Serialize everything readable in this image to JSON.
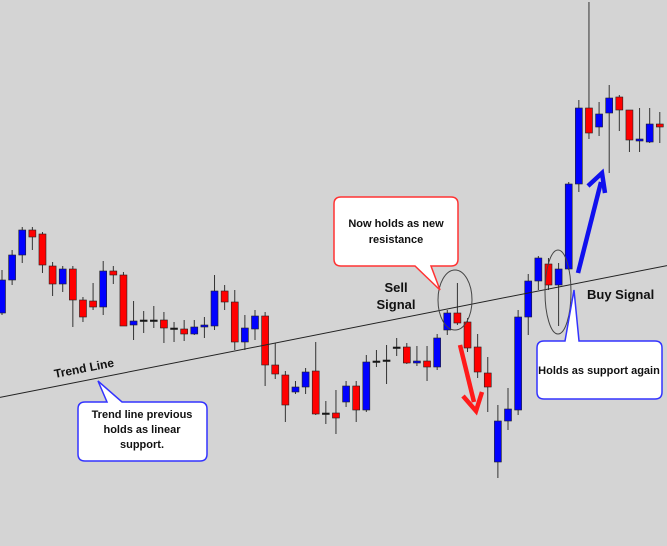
{
  "chart_data": {
    "type": "candlestick",
    "title": "",
    "xlabel": "",
    "ylabel": "",
    "grid": false,
    "colors": {
      "bullish": "#0000ff",
      "bearish": "#ff0000",
      "background": "#d4d4d4",
      "wick": "#333333"
    },
    "ohlc": [
      [
        233,
        276,
        231,
        266
      ],
      [
        266,
        296,
        261,
        291
      ],
      [
        291,
        319,
        283,
        316
      ],
      [
        316,
        319,
        296,
        309
      ],
      [
        312,
        314,
        273,
        281
      ],
      [
        280,
        284,
        250,
        262
      ],
      [
        262,
        280,
        254,
        277
      ],
      [
        277,
        280,
        219,
        246
      ],
      [
        246,
        249,
        224,
        229
      ],
      [
        245,
        263,
        236,
        239
      ],
      [
        239,
        285,
        231,
        275
      ],
      [
        275,
        280,
        262,
        271
      ],
      [
        271,
        274,
        220,
        220
      ],
      [
        221,
        245,
        206,
        225
      ],
      [
        226,
        235,
        213,
        226
      ],
      [
        226,
        240,
        218,
        226
      ],
      [
        226,
        234,
        203,
        218
      ],
      [
        218,
        224,
        204,
        218
      ],
      [
        217,
        226,
        205,
        212
      ],
      [
        212,
        226,
        211,
        219
      ],
      [
        219,
        229,
        208,
        221
      ],
      [
        220,
        271,
        216,
        255
      ],
      [
        255,
        261,
        236,
        244
      ],
      [
        244,
        256,
        196,
        204
      ],
      [
        204,
        231,
        196,
        218
      ],
      [
        217,
        236,
        206,
        230
      ],
      [
        230,
        234,
        160,
        181
      ],
      [
        181,
        203,
        167,
        172
      ],
      [
        171,
        175,
        124,
        141
      ],
      [
        154,
        165,
        152,
        159
      ],
      [
        159,
        178,
        152,
        174
      ],
      [
        175,
        204,
        131,
        132
      ],
      [
        133,
        145,
        122,
        133
      ],
      [
        133,
        156,
        112,
        128
      ],
      [
        144,
        165,
        139,
        160
      ],
      [
        160,
        165,
        124,
        136
      ],
      [
        136,
        191,
        134,
        184
      ],
      [
        185,
        196,
        179,
        185
      ],
      [
        186,
        201,
        162,
        186
      ],
      [
        199,
        208,
        190,
        199
      ],
      [
        199,
        203,
        182,
        183
      ],
      [
        183,
        200,
        180,
        185
      ],
      [
        185,
        200,
        165,
        179
      ],
      [
        179,
        212,
        176,
        208
      ],
      [
        216,
        236,
        211,
        233
      ],
      [
        233,
        263,
        221,
        223
      ],
      [
        224,
        228,
        194,
        198
      ],
      [
        199,
        212,
        168,
        174
      ],
      [
        173,
        189,
        134,
        159
      ],
      [
        84,
        141,
        68,
        125
      ],
      [
        125,
        158,
        116,
        137
      ],
      [
        136,
        236,
        131,
        229
      ],
      [
        229,
        272,
        211,
        265
      ],
      [
        265,
        290,
        256,
        288
      ],
      [
        282,
        288,
        256,
        261
      ],
      [
        261,
        283,
        220,
        277
      ],
      [
        277,
        364,
        276,
        362
      ],
      [
        362,
        446,
        354,
        438
      ],
      [
        438,
        544,
        407,
        413
      ],
      [
        419,
        444,
        410,
        432
      ],
      [
        433,
        461,
        373,
        448
      ],
      [
        449,
        451,
        415,
        436
      ],
      [
        436,
        436,
        394,
        406
      ],
      [
        405,
        438,
        394,
        407
      ],
      [
        404,
        438,
        403,
        422
      ],
      [
        422,
        434,
        403,
        419
      ]
    ],
    "trend_line": {
      "label": "Trend Line",
      "from": [
        0,
        149
      ],
      "to": [
        65,
        279
      ]
    },
    "annotations": {
      "sell_signal": "Sell Signal",
      "buy_signal": "Buy Signal",
      "resistance_note": [
        "Now holds as new",
        "resistance"
      ],
      "trendline_note": [
        "Trend line previous",
        "holds as linear",
        "support."
      ],
      "support_note": [
        "Holds as support again"
      ]
    }
  }
}
